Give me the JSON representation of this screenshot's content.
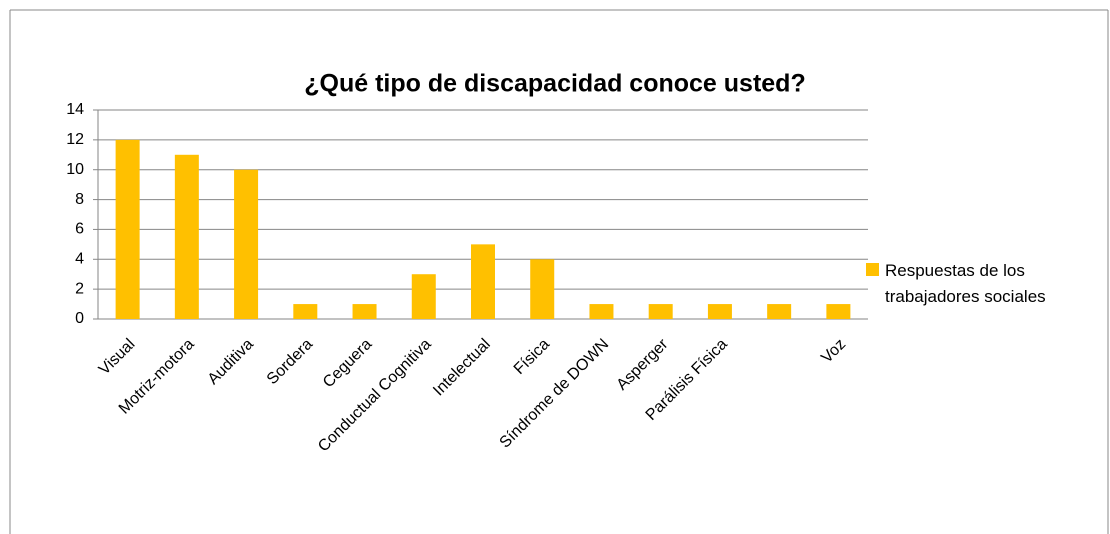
{
  "chart_data": {
    "type": "bar",
    "title": "¿Qué tipo de discapacidad conoce usted?",
    "categories": [
      "Visual",
      "Motriz-motora",
      "Auditiva",
      "Sordera",
      "Ceguera",
      "Conductual Cognitiva",
      "Intelectual",
      "Física",
      "Síndrome de DOWN",
      "Asperger",
      "Parálisis Física",
      null,
      "Voz"
    ],
    "series": [
      {
        "name": "Respuestas de los trabajadores sociales",
        "color": "#ffc000",
        "values": [
          12,
          11,
          10,
          1,
          1,
          3,
          5,
          4,
          1,
          1,
          1,
          1,
          1
        ]
      }
    ],
    "ylim": [
      0,
      14
    ],
    "yticks": [
      0,
      2,
      4,
      6,
      8,
      10,
      12,
      14
    ],
    "grid": true,
    "legend": "right"
  }
}
